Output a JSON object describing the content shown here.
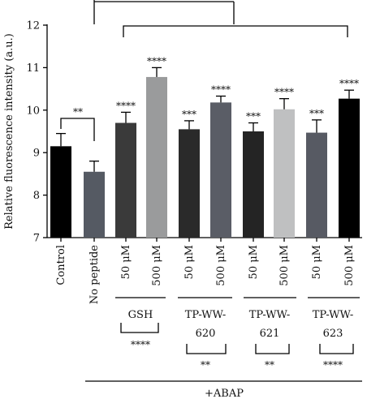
{
  "chart_data": {
    "type": "bar",
    "ylabel": "Relative fluorescence intensity (a.u.)",
    "ylim": [
      7,
      12
    ],
    "yticks": [
      7,
      8,
      9,
      10,
      11,
      12
    ],
    "grid": false,
    "categories": [
      "Control",
      "No peptide",
      "50 μM",
      "500 μM",
      "50 μM",
      "500 μM",
      "50 μM",
      "500 μM",
      "50 μM",
      "500 μM"
    ],
    "values": [
      9.15,
      8.55,
      9.7,
      10.78,
      9.55,
      10.18,
      9.5,
      10.02,
      9.47,
      10.27
    ],
    "errors": [
      0.3,
      0.25,
      0.25,
      0.22,
      0.2,
      0.15,
      0.2,
      0.25,
      0.3,
      0.2
    ],
    "colors": [
      "#000000",
      "#555a63",
      "#3a3a3a",
      "#9a9b9c",
      "#2a2a2a",
      "#5a5d66",
      "#242424",
      "#bfc0c1",
      "#575a63",
      "#000000"
    ],
    "bar_stars": [
      "",
      "",
      "****",
      "****",
      "***",
      "****",
      "***",
      "****",
      "***",
      "****"
    ],
    "groups": [
      {
        "label": "GSH",
        "stars": "****"
      },
      {
        "label": "TP-WW-620",
        "stars": "**"
      },
      {
        "label": "TP-WW-621",
        "stars": "**"
      },
      {
        "label": "TP-WW-623",
        "stars": "****"
      }
    ],
    "control_vs_nopeptide_stars": "**",
    "bottom_label": "+ABAP"
  }
}
